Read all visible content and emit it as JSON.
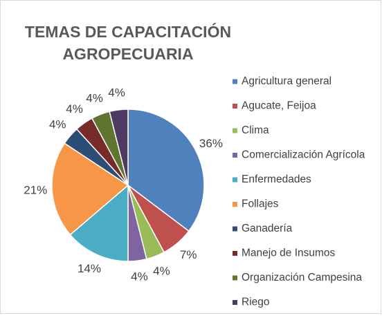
{
  "chart_data": {
    "type": "pie",
    "title": "TEMAS DE CAPACITACIÓN AGROPECUARIA",
    "categories": [
      "Agricultura general",
      "Agucate, Feijoa",
      "Clima",
      "Comercialización Agrícola",
      "Enfermedades",
      "Follajes",
      "Ganadería",
      "Manejo de Insumos",
      "Organización Campesina",
      "Riego"
    ],
    "values": [
      36,
      7,
      4,
      4,
      14,
      21,
      4,
      4,
      4,
      4
    ],
    "value_labels": [
      "36%",
      "7%",
      "4%",
      "4%",
      "14%",
      "21%",
      "4%",
      "4%",
      "4%",
      "4%"
    ],
    "colors": [
      "#4f81bd",
      "#c0504d",
      "#9bbb59",
      "#8064a2",
      "#4bacc6",
      "#f79646",
      "#2c4d75",
      "#772c2a",
      "#5f7530",
      "#4d3b62"
    ],
    "legend": "right"
  }
}
